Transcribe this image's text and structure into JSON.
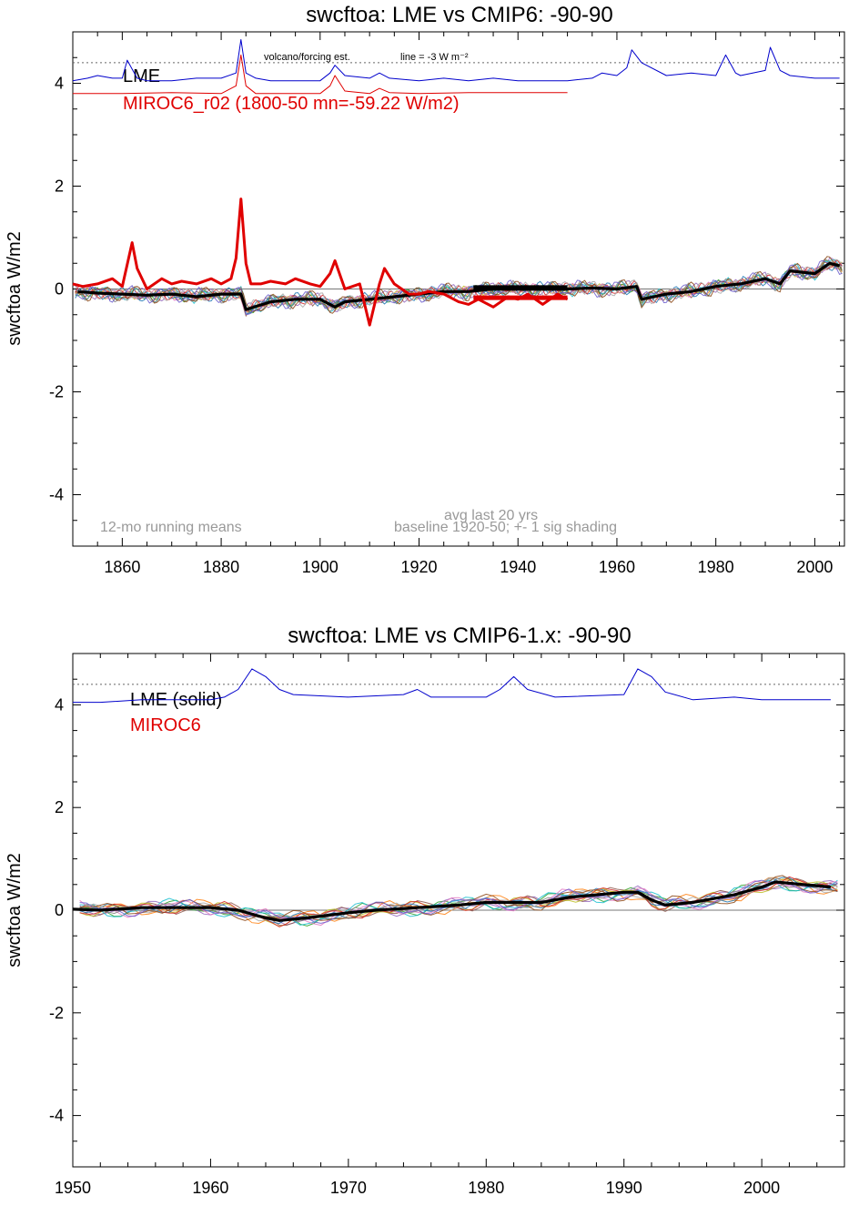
{
  "chart_data": [
    {
      "type": "line",
      "title": "swcftoa: LME vs CMIP6: -90-90",
      "ylabel": "swcftoa W/m2",
      "xlim": [
        1850,
        2006
      ],
      "ylim": [
        -5,
        5
      ],
      "x_ticks": [
        "1860",
        "1880",
        "1900",
        "1920",
        "1940",
        "1960",
        "1980",
        "2000"
      ],
      "y_ticks": [
        "4",
        "2",
        "0",
        "-2",
        "-4"
      ],
      "legend": [
        {
          "name": "LME",
          "color": "#000000"
        },
        {
          "name": "MIROC6_r02 (1800-50 mn=-59.22 W/m2)",
          "color": "#e00000"
        }
      ],
      "annotations": {
        "volcano": "volcano/forcing est.",
        "line_note": "line = -3 W m⁻²",
        "running": "12-mo running means",
        "avg": "avg last 20 yrs",
        "baseline": "baseline 1920-50; +- 1 sig shading"
      },
      "reference_line": 4.4,
      "series": [
        {
          "name": "LME",
          "color": "#000000",
          "x": [
            1851,
            1855,
            1860,
            1865,
            1870,
            1875,
            1880,
            1884,
            1885,
            1890,
            1895,
            1900,
            1903,
            1905,
            1910,
            1915,
            1920,
            1925,
            1930,
            1935,
            1940,
            1945,
            1950,
            1955,
            1960,
            1964,
            1965,
            1970,
            1975,
            1980,
            1985,
            1990,
            1993,
            1995,
            2000,
            2003,
            2005
          ],
          "y": [
            -0.05,
            -0.08,
            -0.1,
            -0.12,
            -0.1,
            -0.15,
            -0.1,
            -0.1,
            -0.4,
            -0.25,
            -0.2,
            -0.2,
            -0.35,
            -0.25,
            -0.2,
            -0.15,
            -0.1,
            -0.05,
            -0.05,
            0,
            0,
            0,
            0,
            0.02,
            0,
            0.05,
            -0.2,
            -0.1,
            -0.05,
            0.05,
            0.1,
            0.2,
            0.1,
            0.35,
            0.3,
            0.5,
            0.45
          ]
        },
        {
          "name": "MIROC6_r02",
          "color": "#e00000",
          "x": [
            1850,
            1852,
            1855,
            1858,
            1860,
            1862,
            1863,
            1865,
            1868,
            1870,
            1872,
            1875,
            1878,
            1880,
            1882,
            1883,
            1884,
            1885,
            1886,
            1888,
            1890,
            1893,
            1895,
            1898,
            1900,
            1902,
            1903,
            1905,
            1908,
            1910,
            1912,
            1913,
            1915,
            1918,
            1920,
            1922,
            1925,
            1928,
            1930,
            1932,
            1935,
            1938,
            1940,
            1942,
            1945,
            1948,
            1950
          ],
          "y": [
            0.1,
            0.05,
            0.1,
            0.2,
            0.05,
            0.9,
            0.4,
            0,
            0.2,
            0.1,
            0.15,
            0.1,
            0.2,
            0.1,
            0.2,
            0.6,
            1.75,
            0.5,
            0.1,
            0.1,
            0.15,
            0.1,
            0.2,
            0.1,
            0.05,
            0.3,
            0.55,
            0.0,
            0.1,
            -0.7,
            0.1,
            0.4,
            0.1,
            -0.1,
            -0.1,
            -0.05,
            -0.1,
            -0.25,
            -0.3,
            -0.2,
            -0.35,
            -0.15,
            -0.2,
            -0.1,
            -0.3,
            -0.1,
            -0.2
          ]
        },
        {
          "name": "LME forcing",
          "color": "#0000cc",
          "x": [
            1850,
            1853,
            1855,
            1858,
            1860,
            1861,
            1863,
            1865,
            1870,
            1875,
            1880,
            1883,
            1884,
            1885,
            1887,
            1890,
            1895,
            1900,
            1902,
            1903,
            1905,
            1910,
            1912,
            1914,
            1920,
            1925,
            1930,
            1935,
            1940,
            1945,
            1950,
            1955,
            1957,
            1960,
            1962,
            1963,
            1965,
            1970,
            1975,
            1980,
            1982,
            1984,
            1985,
            1990,
            1991,
            1993,
            1995,
            2000,
            2005
          ],
          "y": [
            4.05,
            4.1,
            4.15,
            4.1,
            4.1,
            4.45,
            4.1,
            4.05,
            4.05,
            4.1,
            4.1,
            4.2,
            4.85,
            4.2,
            4.1,
            4.05,
            4.05,
            4.05,
            4.2,
            4.35,
            4.15,
            4.1,
            4.2,
            4.1,
            4.05,
            4.1,
            4.05,
            4.1,
            4.05,
            4.05,
            4.05,
            4.1,
            4.2,
            4.15,
            4.3,
            4.65,
            4.4,
            4.15,
            4.2,
            4.15,
            4.55,
            4.2,
            4.15,
            4.25,
            4.7,
            4.25,
            4.15,
            4.1,
            4.1
          ]
        },
        {
          "name": "MIROC6 forcing",
          "color": "#e00000",
          "x": [
            1850,
            1860,
            1870,
            1880,
            1883,
            1884,
            1885,
            1887,
            1890,
            1900,
            1902,
            1903,
            1905,
            1910,
            1912,
            1914,
            1920,
            1930,
            1940,
            1950
          ],
          "y": [
            3.8,
            3.8,
            3.82,
            3.8,
            3.95,
            4.55,
            3.95,
            3.8,
            3.8,
            3.8,
            3.95,
            4.15,
            3.85,
            3.8,
            3.9,
            3.82,
            3.8,
            3.82,
            3.82,
            3.82
          ]
        }
      ]
    },
    {
      "type": "line",
      "title": "swcftoa: LME vs CMIP6-1.x: -90-90",
      "ylabel": "swcftoa W/m2",
      "xlim": [
        1950,
        2006
      ],
      "ylim": [
        -5,
        5
      ],
      "x_ticks": [
        "1950",
        "1960",
        "1970",
        "1980",
        "1990",
        "2000"
      ],
      "y_ticks": [
        "4",
        "2",
        "0",
        "-2",
        "-4"
      ],
      "legend": [
        {
          "name": "LME (solid)",
          "color": "#000000"
        },
        {
          "name": "MIROC6",
          "color": "#e00000"
        }
      ],
      "reference_line": 4.4,
      "series": [
        {
          "name": "LME (solid)",
          "color": "#000000",
          "x": [
            1950,
            1952,
            1955,
            1958,
            1960,
            1962,
            1964,
            1965,
            1967,
            1970,
            1972,
            1975,
            1978,
            1980,
            1982,
            1984,
            1986,
            1988,
            1990,
            1991,
            1992,
            1993,
            1995,
            1998,
            2000,
            2001,
            2003,
            2005
          ],
          "y": [
            0.02,
            0,
            0.05,
            0.05,
            0.05,
            0,
            -0.15,
            -0.2,
            -0.15,
            -0.05,
            0,
            0.05,
            0.1,
            0.15,
            0.15,
            0.15,
            0.25,
            0.3,
            0.35,
            0.35,
            0.2,
            0.1,
            0.15,
            0.3,
            0.45,
            0.55,
            0.5,
            0.45
          ]
        },
        {
          "name": "LME forcing",
          "color": "#0000cc",
          "x": [
            1950,
            1952,
            1955,
            1958,
            1960,
            1961,
            1962,
            1963,
            1964,
            1965,
            1966,
            1970,
            1974,
            1975,
            1976,
            1980,
            1981,
            1982,
            1983,
            1985,
            1990,
            1991,
            1992,
            1993,
            1995,
            1998,
            2000,
            2005
          ],
          "y": [
            4.05,
            4.05,
            4.1,
            4.1,
            4.1,
            4.15,
            4.3,
            4.7,
            4.55,
            4.3,
            4.2,
            4.15,
            4.2,
            4.3,
            4.15,
            4.15,
            4.3,
            4.55,
            4.3,
            4.15,
            4.2,
            4.7,
            4.55,
            4.25,
            4.1,
            4.15,
            4.1,
            4.1
          ]
        }
      ]
    }
  ]
}
